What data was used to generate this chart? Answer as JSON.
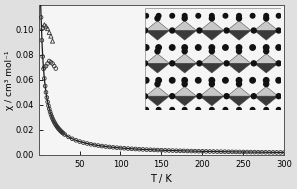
{
  "title": "",
  "xlabel": "T / K",
  "ylabel": "χ / cm³ mol⁻¹",
  "xlim": [
    0,
    300
  ],
  "ylim": [
    0.0,
    0.12
  ],
  "yticks": [
    0.0,
    0.02,
    0.04,
    0.06,
    0.08,
    0.1
  ],
  "xticks": [
    50,
    100,
    150,
    200,
    250,
    300
  ],
  "bg_color": "#e0e0e0",
  "plot_bg_color": "#f5f5f5",
  "line_color": "#1a1a1a",
  "scatter_color": "#333333",
  "curie_weiss_C": 0.55,
  "curie_weiss_theta": -2.0,
  "dark_gray": "#3a3a3a",
  "light_gray": "#c8c8c8",
  "ball_color": "#111111"
}
